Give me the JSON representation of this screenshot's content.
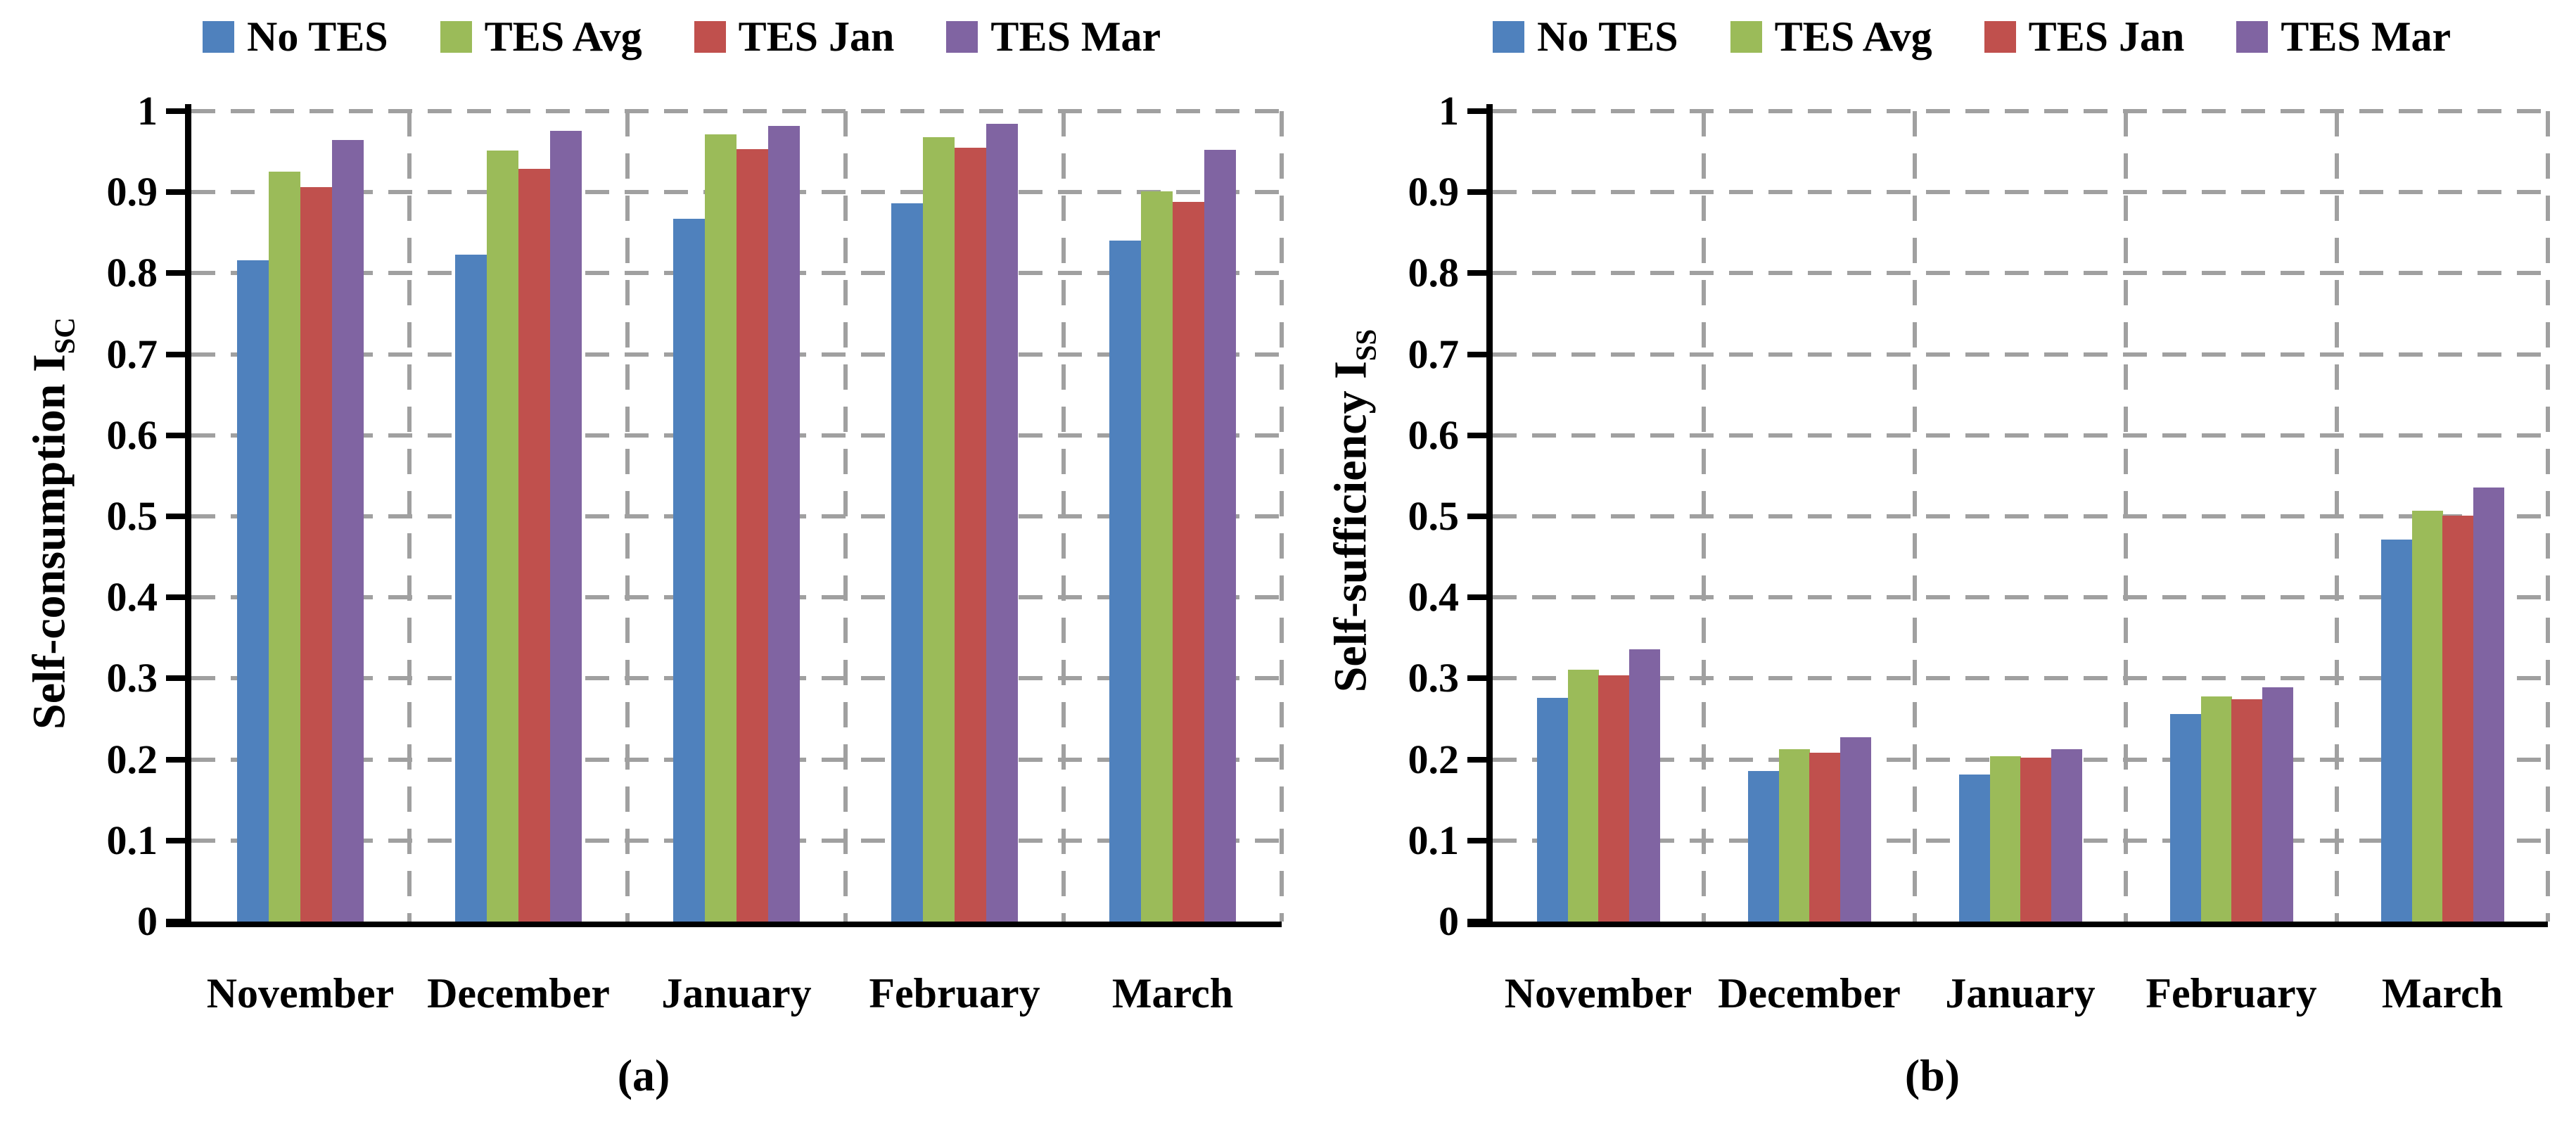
{
  "figure": {
    "background_color": "#ffffff",
    "grid_color": "#A0A0A0",
    "axis_color": "#000000"
  },
  "panel_a": {
    "caption": "(a)",
    "y_axis_title": "Self-consumption I",
    "y_axis_subscript": "SC"
  },
  "panel_b": {
    "caption": "(b)",
    "y_axis_title": "Self-sufficiency I",
    "y_axis_subscript": "SS"
  },
  "chart_data": [
    {
      "type": "bar",
      "panel": "a",
      "title": "",
      "xlabel": "",
      "ylabel": "Self-consumption I_SC",
      "categories": [
        "November",
        "December",
        "January",
        "February",
        "March"
      ],
      "series": [
        {
          "name": "No TES",
          "color": "#4F81BD",
          "values": [
            0.816,
            0.823,
            0.867,
            0.886,
            0.84
          ]
        },
        {
          "name": "TES Avg",
          "color": "#9BBB59",
          "values": [
            0.925,
            0.951,
            0.971,
            0.968,
            0.901
          ]
        },
        {
          "name": "TES Jan",
          "color": "#C0504D",
          "values": [
            0.906,
            0.929,
            0.953,
            0.955,
            0.888
          ]
        },
        {
          "name": "TES Mar",
          "color": "#8064A2",
          "values": [
            0.964,
            0.976,
            0.982,
            0.984,
            0.952
          ]
        }
      ],
      "ylim": [
        0,
        1
      ],
      "ytick_step": 0.1,
      "y_tick_labels": [
        "0",
        "0.1",
        "0.2",
        "0.3",
        "0.4",
        "0.5",
        "0.6",
        "0.7",
        "0.8",
        "0.9",
        "1"
      ],
      "grid": true,
      "legend_position": "top"
    },
    {
      "type": "bar",
      "panel": "b",
      "title": "",
      "xlabel": "",
      "ylabel": "Self-sufficiency I_SS",
      "categories": [
        "November",
        "December",
        "January",
        "February",
        "March"
      ],
      "series": [
        {
          "name": "No TES",
          "color": "#4F81BD",
          "values": [
            0.276,
            0.186,
            0.181,
            0.256,
            0.471
          ]
        },
        {
          "name": "TES Avg",
          "color": "#9BBB59",
          "values": [
            0.311,
            0.213,
            0.204,
            0.278,
            0.507
          ]
        },
        {
          "name": "TES Jan",
          "color": "#C0504D",
          "values": [
            0.304,
            0.208,
            0.202,
            0.274,
            0.501
          ]
        },
        {
          "name": "TES Mar",
          "color": "#8064A2",
          "values": [
            0.336,
            0.227,
            0.213,
            0.289,
            0.536
          ]
        }
      ],
      "ylim": [
        0,
        1
      ],
      "ytick_step": 0.1,
      "y_tick_labels": [
        "0",
        "0.1",
        "0.2",
        "0.3",
        "0.4",
        "0.5",
        "0.6",
        "0.7",
        "0.8",
        "0.9",
        "1"
      ],
      "grid": true,
      "legend_position": "top"
    }
  ]
}
